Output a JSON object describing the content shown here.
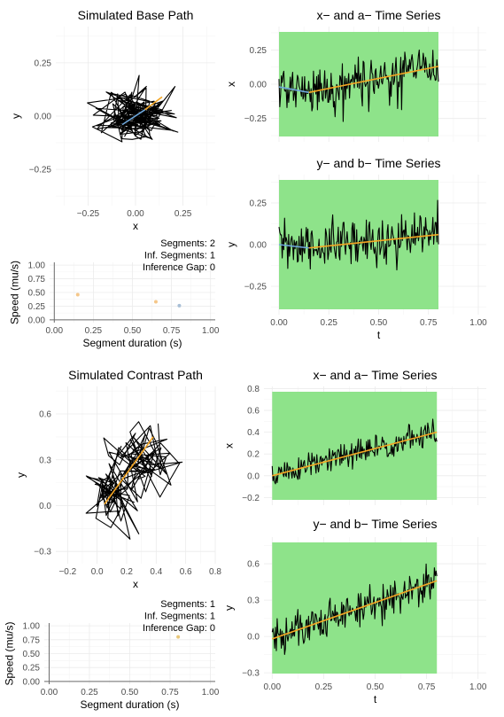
{
  "chart_data": [
    {
      "id": "base_path",
      "type": "line",
      "title": "Simulated Base Path",
      "xlabel": "x",
      "ylabel": "y",
      "xlim": [
        -0.42,
        0.42
      ],
      "ylim": [
        -0.42,
        0.42
      ],
      "xticks": [
        -0.25,
        0,
        0.25
      ],
      "xtick_labels": [
        "−0.25",
        "0.00",
        "0.25"
      ],
      "yticks": [
        -0.25,
        0,
        0.25
      ],
      "ytick_labels": [
        "−0.25",
        "0.00",
        "0.25"
      ],
      "path_seed": 11,
      "path_n": 140,
      "path_center": [
        0,
        0
      ],
      "path_spread": [
        0.09,
        0.07
      ],
      "inference_segments": [
        [
          [
            -0.07,
            -0.04
          ],
          [
            0.05,
            0.03
          ]
        ],
        [
          [
            0.05,
            0.03
          ],
          [
            0.14,
            0.09
          ]
        ]
      ],
      "inference_colors": [
        "#6fa8dc",
        "#f5a623"
      ]
    },
    {
      "id": "base_x",
      "type": "line",
      "title": "x− and a− Time Series",
      "xlabel": "",
      "ylabel": "x",
      "xlim": [
        -0.04,
        1.04
      ],
      "ylim": [
        -0.42,
        0.42
      ],
      "xticks": [
        0,
        0.25,
        0.5,
        0.75,
        1
      ],
      "xtick_labels": [
        "",
        "",
        "",
        "",
        ""
      ],
      "yticks": [
        -0.25,
        0,
        0.25
      ],
      "ytick_labels": [
        "−0.25",
        "0.00",
        "0.25"
      ],
      "band_x": [
        0,
        0.8
      ],
      "series_seed": 21,
      "series_n": 200,
      "noise": 0.085,
      "trend": [
        [
          0,
          -0.02
        ],
        [
          0.15,
          -0.06
        ],
        [
          0.8,
          0.13
        ]
      ],
      "trend_colors": [
        "#6fa8dc",
        "#f5a623"
      ]
    },
    {
      "id": "base_y",
      "type": "line",
      "title": "y− and b− Time Series",
      "xlabel": "t",
      "ylabel": "y",
      "xlim": [
        -0.04,
        1.04
      ],
      "ylim": [
        -0.42,
        0.42
      ],
      "xticks": [
        0,
        0.25,
        0.5,
        0.75,
        1
      ],
      "xtick_labels": [
        "0.00",
        "0.25",
        "0.50",
        "0.75",
        "1.00"
      ],
      "yticks": [
        -0.25,
        0,
        0.25
      ],
      "ytick_labels": [
        "−0.25",
        "0.00",
        "0.25"
      ],
      "band_x": [
        0,
        0.8
      ],
      "series_seed": 31,
      "series_n": 200,
      "noise": 0.075,
      "trend": [
        [
          0,
          0.0
        ],
        [
          0.15,
          -0.02
        ],
        [
          0.8,
          0.06
        ]
      ],
      "trend_colors": [
        "#6fa8dc",
        "#f5a623"
      ]
    },
    {
      "id": "base_speed",
      "type": "scatter",
      "title": "",
      "xlabel": "Segment duration (s)",
      "ylabel": "Speed (mu/s)",
      "xlim": [
        -0.03,
        1.03
      ],
      "ylim": [
        -0.05,
        1.05
      ],
      "xticks": [
        0,
        0.25,
        0.5,
        0.75,
        1
      ],
      "xtick_labels": [
        "0.00",
        "0.25",
        "0.50",
        "0.75",
        "1.00"
      ],
      "yticks": [
        0,
        0.25,
        0.5,
        0.75,
        1
      ],
      "ytick_labels": [
        "0.00",
        "0.25",
        "0.50",
        "0.75",
        "1.00"
      ],
      "points": [
        {
          "x": 0.15,
          "y": 0.46,
          "color": "#f5c78a"
        },
        {
          "x": 0.65,
          "y": 0.33,
          "color": "#f5c78a"
        },
        {
          "x": 0.8,
          "y": 0.26,
          "color": "#a8bfd6"
        }
      ],
      "annotations": [
        "Segments: 2",
        "Inf. Segments: 1",
        "Inference Gap: 0"
      ]
    },
    {
      "id": "contrast_path",
      "type": "line",
      "title": "Simulated Contrast Path",
      "xlabel": "x",
      "ylabel": "y",
      "xlim": [
        -0.28,
        0.8
      ],
      "ylim": [
        -0.38,
        0.78
      ],
      "xticks": [
        -0.2,
        0,
        0.2,
        0.4,
        0.6,
        0.8
      ],
      "xtick_labels": [
        "−0.2",
        "0.0",
        "0.2",
        "0.4",
        "0.6",
        "0.8"
      ],
      "yticks": [
        -0.3,
        0,
        0.3,
        0.6
      ],
      "ytick_labels": [
        "−0.3",
        "0.0",
        "0.3",
        "0.6"
      ],
      "path_seed": 41,
      "path_n": 130,
      "path_center": [
        0.22,
        0.2
      ],
      "path_spread": [
        0.11,
        0.11
      ],
      "path_trend": [
        0.3,
        0.4
      ],
      "inference_segments": [
        [
          [
            0.05,
            0.01
          ],
          [
            0.38,
            0.45
          ]
        ]
      ],
      "inference_colors": [
        "#f5a623"
      ]
    },
    {
      "id": "contrast_x",
      "type": "line",
      "title": "x− and a− Time Series",
      "xlabel": "",
      "ylabel": "x",
      "xlim": [
        -0.04,
        1.04
      ],
      "ylim": [
        -0.27,
        0.82
      ],
      "xticks": [
        0,
        0.25,
        0.5,
        0.75,
        1
      ],
      "xtick_labels": [
        "",
        "",
        "",
        "",
        ""
      ],
      "yticks": [
        -0.2,
        0,
        0.2,
        0.4,
        0.6,
        0.8
      ],
      "ytick_labels": [
        "−0.2",
        "0.0",
        "0.2",
        "0.4",
        "0.6",
        "0.8"
      ],
      "band_x": [
        0,
        0.8
      ],
      "series_seed": 51,
      "series_n": 200,
      "noise": 0.065,
      "trend": [
        [
          0,
          0.0
        ],
        [
          0.8,
          0.4
        ]
      ],
      "trend_colors": [
        "#f5a623"
      ]
    },
    {
      "id": "contrast_y",
      "type": "line",
      "title": "y− and b− Time Series",
      "xlabel": "t",
      "ylabel": "y",
      "xlim": [
        -0.04,
        1.04
      ],
      "ylim": [
        -0.35,
        0.82
      ],
      "xticks": [
        0,
        0.25,
        0.5,
        0.75,
        1
      ],
      "xtick_labels": [
        "0.00",
        "0.25",
        "0.50",
        "0.75",
        "1.00"
      ],
      "yticks": [
        -0.3,
        0,
        0.3,
        0.6
      ],
      "ytick_labels": [
        "−0.3",
        "0.0",
        "0.3",
        "0.6"
      ],
      "band_x": [
        0,
        0.8
      ],
      "series_seed": 61,
      "series_n": 200,
      "noise": 0.09,
      "trend": [
        [
          0,
          -0.02
        ],
        [
          0.8,
          0.46
        ]
      ],
      "trend_colors": [
        "#f5a623"
      ]
    },
    {
      "id": "contrast_speed",
      "type": "scatter",
      "title": "",
      "xlabel": "Segment duration (s)",
      "ylabel": "Speed (mu/s)",
      "xlim": [
        -0.03,
        1.03
      ],
      "ylim": [
        -0.05,
        1.05
      ],
      "xticks": [
        0,
        0.25,
        0.5,
        0.75,
        1
      ],
      "xtick_labels": [
        "0.00",
        "0.25",
        "0.50",
        "0.75",
        "1.00"
      ],
      "yticks": [
        0,
        0.25,
        0.5,
        0.75,
        1
      ],
      "ytick_labels": [
        "0.00",
        "0.25",
        "0.50",
        "0.75",
        "1.00"
      ],
      "points": [
        {
          "x": 0.8,
          "y": 0.8,
          "color": "#e8c77a"
        }
      ],
      "annotations": [
        "Segments: 1",
        "Inf. Segments: 1",
        "Inference Gap: 0"
      ]
    }
  ],
  "colors": {
    "band": "#8ee38a",
    "path": "#000000",
    "grid": "#ebebeb"
  }
}
